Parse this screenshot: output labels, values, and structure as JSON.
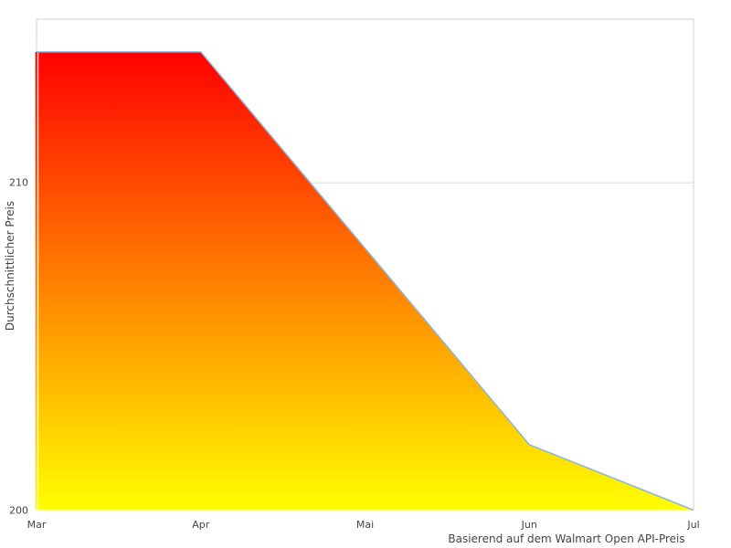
{
  "chart_data": {
    "type": "area",
    "categories": [
      "Mar",
      "Apr",
      "Mai",
      "Jun",
      "Jul"
    ],
    "series": [
      {
        "name": "Durchschnittlicher Preis",
        "values": [
          214,
          214,
          208,
          202,
          200
        ]
      }
    ],
    "title": "",
    "xlabel": "Basierend auf dem Walmart Open API-Preis",
    "ylabel": "Durchschnittlicher Preis",
    "y_tick_labels": [
      "200",
      "210"
    ],
    "yticks": [
      200,
      210
    ],
    "ylim": [
      200,
      215
    ],
    "grid": "horizontal, only at 210",
    "legend": "none",
    "colors": {
      "fill_gradient_top": "#ff0000",
      "fill_gradient_bottom": "#ffff00",
      "line": "#8db6d9",
      "gridline": "#e2e2e2",
      "spine": "#d9d9d9",
      "tick_text": "#444444",
      "background": "#ffffff"
    }
  }
}
